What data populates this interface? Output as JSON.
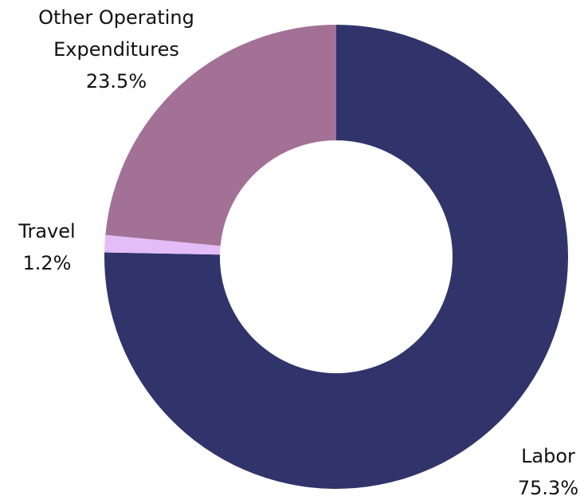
{
  "chart_data": {
    "type": "donut",
    "categories": [
      "Labor",
      "Travel",
      "Other Operating Expenditures"
    ],
    "values": [
      75.3,
      1.2,
      23.5
    ],
    "value_labels": [
      "75.3%",
      "1.2%",
      "23.5%"
    ],
    "colors": [
      "#31346b",
      "#e3bdf7",
      "#a37096"
    ]
  }
}
